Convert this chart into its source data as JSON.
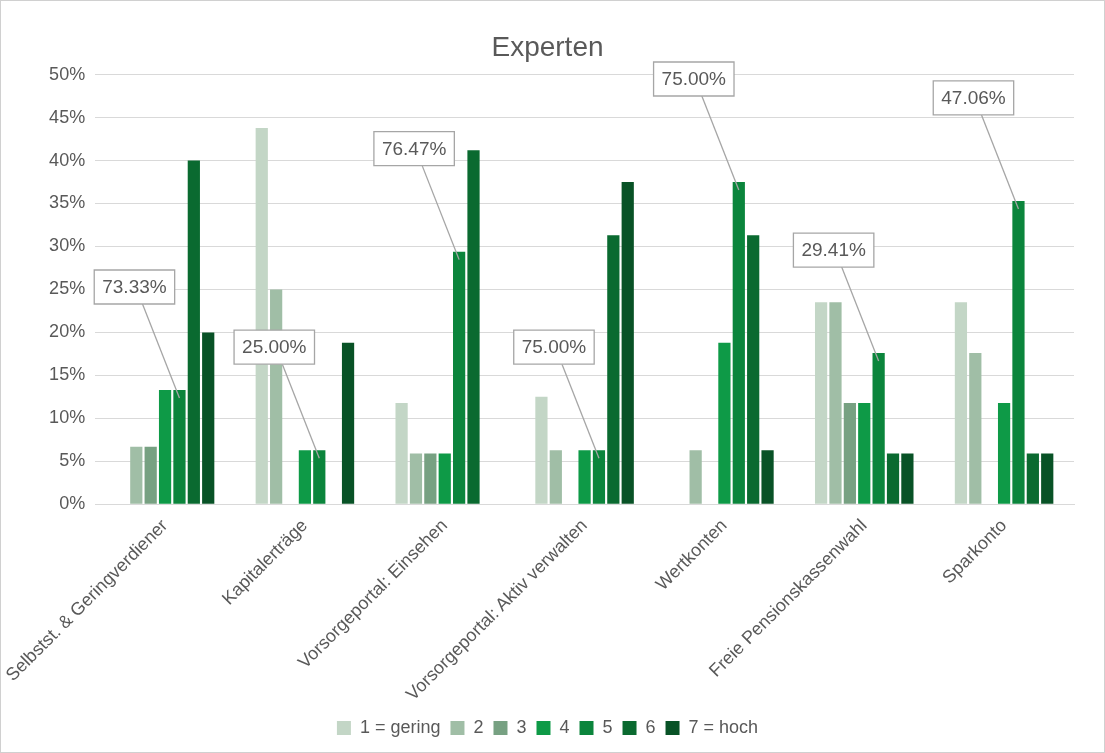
{
  "chart_data": {
    "type": "bar",
    "title": "Experten",
    "categories": [
      "Selbstst. & Geringverdiener",
      "Kapitalerträge",
      "Vorsorgeportal: Einsehen",
      "Vorsorgeportal: Aktiv verwalten",
      "Wertkonten",
      "Freie Pensionskassenwahl",
      "Sparkonto"
    ],
    "series": [
      {
        "name": "1 = gering",
        "color": "#c3d6c6",
        "values": [
          0,
          43.8,
          11.8,
          12.5,
          0,
          23.5,
          23.5
        ]
      },
      {
        "name": "2",
        "color": "#a0bea6",
        "values": [
          6.7,
          25,
          5.9,
          6.3,
          6.3,
          23.5,
          17.6
        ]
      },
      {
        "name": "3",
        "color": "#77a182",
        "values": [
          6.7,
          0,
          5.9,
          0,
          0,
          11.8,
          0
        ]
      },
      {
        "name": "4",
        "color": "#0e9a47",
        "values": [
          13.3,
          6.3,
          5.9,
          6.3,
          18.8,
          11.8,
          11.8
        ]
      },
      {
        "name": "5",
        "color": "#0b853c",
        "values": [
          13.3,
          6.3,
          29.4,
          6.3,
          37.5,
          17.6,
          35.3
        ]
      },
      {
        "name": "6",
        "color": "#0a6a30",
        "values": [
          40,
          0,
          41.2,
          31.3,
          31.3,
          5.9,
          5.9
        ]
      },
      {
        "name": "7 = hoch",
        "color": "#085226",
        "values": [
          20,
          18.8,
          0,
          37.5,
          6.3,
          5.9,
          5.9
        ]
      }
    ],
    "ylim": [
      0,
      50
    ],
    "yticks": [
      {
        "value": 0,
        "label": "0%"
      },
      {
        "value": 5,
        "label": "5%"
      },
      {
        "value": 10,
        "label": "10%"
      },
      {
        "value": 15,
        "label": "15%"
      },
      {
        "value": 20,
        "label": "20%"
      },
      {
        "value": 25,
        "label": "25%"
      },
      {
        "value": 30,
        "label": "30%"
      },
      {
        "value": 35,
        "label": "35%"
      },
      {
        "value": 40,
        "label": "40%"
      },
      {
        "value": 45,
        "label": "45%"
      },
      {
        "value": 50,
        "label": "50%"
      }
    ],
    "grid": "y",
    "legend": "bottom",
    "annotations": [
      "73.33%",
      "25.00%",
      "76.47%",
      "75.00%",
      "75.00%",
      "29.41%",
      "47.06%"
    ]
  }
}
